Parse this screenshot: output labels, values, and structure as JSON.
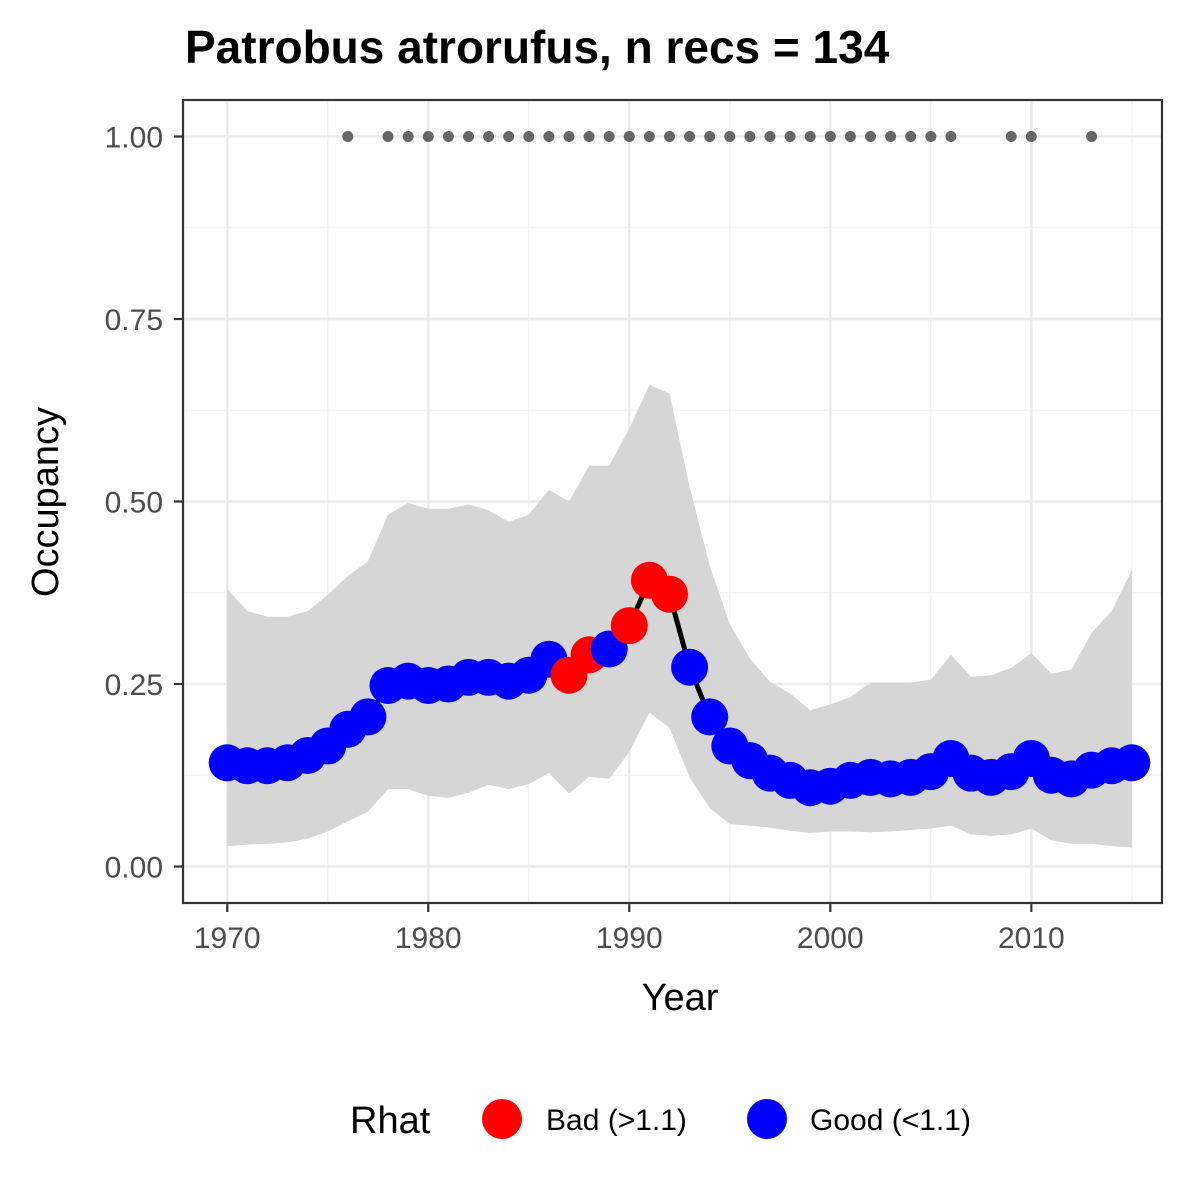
{
  "chart_data": {
    "type": "line",
    "title": "Patrobus atrorufus, n recs = 134",
    "xlabel": "Year",
    "ylabel": "Occupancy",
    "xlim": [
      1967.8,
      2016.5
    ],
    "ylim": [
      -0.05,
      1.05
    ],
    "x_ticks": [
      1970,
      1980,
      1990,
      2000,
      2010
    ],
    "x_tick_labels": [
      "1970",
      "1980",
      "1990",
      "2000",
      "2010"
    ],
    "y_ticks": [
      0,
      0.25,
      0.5,
      0.75,
      1
    ],
    "y_tick_labels": [
      "0.00",
      "0.25",
      "0.50",
      "0.75",
      "1.00"
    ],
    "grid": true,
    "legend_position": "bottom",
    "legend": {
      "title": "Rhat",
      "items": [
        {
          "key": "bad",
          "label": "Bad (>1.1)",
          "color": "#ff0000"
        },
        {
          "key": "good",
          "label": "Good (<1.1)",
          "color": "#0000ff"
        }
      ]
    },
    "colors": {
      "bad": "#ff0000",
      "good": "#0000ff",
      "ribbon": "#d6d6d6",
      "line": "#000000",
      "record_dots": "#666666"
    },
    "x": [
      1970,
      1971,
      1972,
      1973,
      1974,
      1975,
      1976,
      1977,
      1978,
      1979,
      1980,
      1981,
      1982,
      1983,
      1984,
      1985,
      1986,
      1987,
      1988,
      1989,
      1990,
      1991,
      1992,
      1993,
      1994,
      1995,
      1996,
      1997,
      1998,
      1999,
      2000,
      2001,
      2002,
      2003,
      2004,
      2005,
      2006,
      2007,
      2008,
      2009,
      2010,
      2011,
      2012,
      2013,
      2014,
      2015
    ],
    "occupancy": [
      0.142,
      0.138,
      0.138,
      0.142,
      0.152,
      0.165,
      0.188,
      0.205,
      0.248,
      0.254,
      0.248,
      0.25,
      0.259,
      0.259,
      0.254,
      0.262,
      0.284,
      0.262,
      0.29,
      0.298,
      0.33,
      0.392,
      0.373,
      0.273,
      0.205,
      0.165,
      0.145,
      0.128,
      0.118,
      0.108,
      0.11,
      0.118,
      0.122,
      0.12,
      0.122,
      0.13,
      0.148,
      0.128,
      0.122,
      0.13,
      0.148,
      0.125,
      0.12,
      0.132,
      0.138,
      0.142
    ],
    "lower": [
      0.028,
      0.03,
      0.031,
      0.033,
      0.038,
      0.048,
      0.062,
      0.075,
      0.106,
      0.106,
      0.097,
      0.094,
      0.101,
      0.112,
      0.106,
      0.113,
      0.128,
      0.1,
      0.123,
      0.12,
      0.157,
      0.211,
      0.19,
      0.122,
      0.08,
      0.058,
      0.056,
      0.053,
      0.049,
      0.046,
      0.048,
      0.048,
      0.047,
      0.048,
      0.05,
      0.052,
      0.056,
      0.044,
      0.042,
      0.044,
      0.052,
      0.036,
      0.031,
      0.031,
      0.028,
      0.026
    ],
    "upper": [
      0.38,
      0.35,
      0.342,
      0.342,
      0.35,
      0.372,
      0.398,
      0.418,
      0.482,
      0.498,
      0.49,
      0.49,
      0.496,
      0.488,
      0.472,
      0.482,
      0.516,
      0.5,
      0.549,
      0.549,
      0.6,
      0.66,
      0.648,
      0.52,
      0.412,
      0.332,
      0.285,
      0.253,
      0.237,
      0.214,
      0.222,
      0.232,
      0.252,
      0.252,
      0.252,
      0.256,
      0.29,
      0.26,
      0.262,
      0.272,
      0.292,
      0.264,
      0.27,
      0.32,
      0.35,
      0.406
    ],
    "rhat": [
      "good",
      "good",
      "good",
      "good",
      "good",
      "good",
      "good",
      "good",
      "good",
      "good",
      "good",
      "good",
      "good",
      "good",
      "good",
      "good",
      "good",
      "bad",
      "bad",
      "good",
      "bad",
      "bad",
      "bad",
      "good",
      "good",
      "good",
      "good",
      "good",
      "good",
      "good",
      "good",
      "good",
      "good",
      "good",
      "good",
      "good",
      "good",
      "good",
      "good",
      "good",
      "good",
      "good",
      "good",
      "good",
      "good",
      "good"
    ],
    "record_years": [
      1976,
      1978,
      1979,
      1980,
      1981,
      1982,
      1983,
      1984,
      1985,
      1986,
      1987,
      1988,
      1989,
      1990,
      1991,
      1992,
      1993,
      1994,
      1995,
      1996,
      1997,
      1998,
      1999,
      2000,
      2001,
      2002,
      2003,
      2004,
      2005,
      2006,
      2009,
      2010,
      2013
    ],
    "record_value": 1.0
  }
}
